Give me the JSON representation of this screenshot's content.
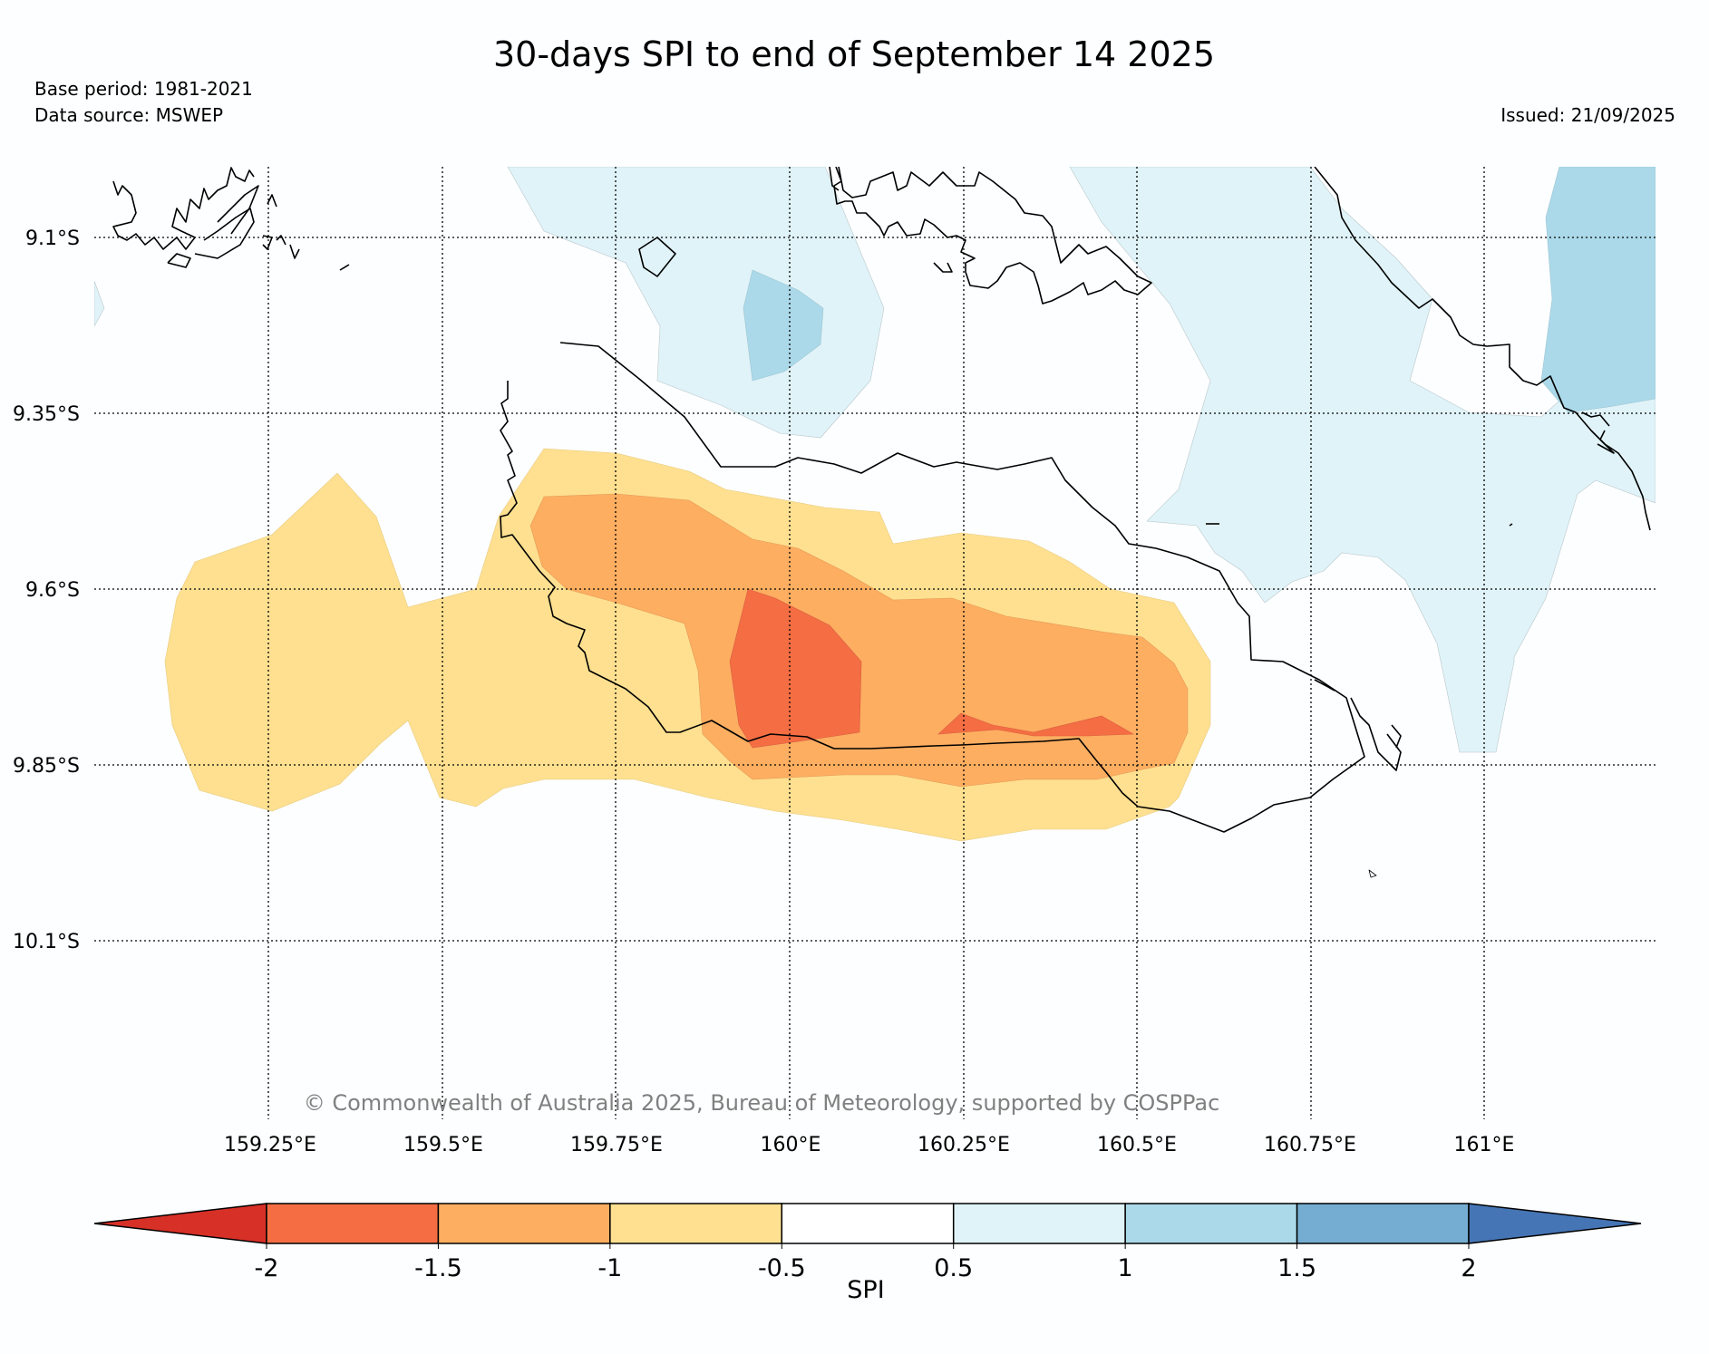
{
  "title": "30-days SPI to end of September 14 2025",
  "base_period": "Base period: 1981-2021",
  "data_source": "Data source: MSWEP",
  "issued": "Issued: 21/09/2025",
  "copyright": "© Commonwealth of Australia 2025, Bureau of Meteorology, supported by COSPPac",
  "lat_labels": [
    "9.1°S",
    "9.35°S",
    "9.6°S",
    "9.85°S",
    "10.1°S"
  ],
  "lon_labels": [
    "159.25°E",
    "159.5°E",
    "159.75°E",
    "160°E",
    "160.25°E",
    "160.5°E",
    "160.75°E",
    "161°E"
  ],
  "colorbar": {
    "label": "SPI",
    "ticks": [
      "-2",
      "-1.5",
      "-1",
      "-0.5",
      "0.5",
      "1",
      "1.5",
      "2"
    ],
    "colors": [
      "#d73027",
      "#f46d43",
      "#fdae61",
      "#fee090",
      "#ffffff",
      "#e0f3f8",
      "#abd9e9",
      "#74add1",
      "#4575b4"
    ]
  },
  "colors": {
    "spi_below_-1.5": "#f46d43",
    "spi_-1.5_to_-1": "#fdae61",
    "spi_-1_to_-0.5": "#fee090",
    "spi_0.5_to_1": "#e0f3f8",
    "spi_1_to_1.5": "#abd9e9"
  }
}
